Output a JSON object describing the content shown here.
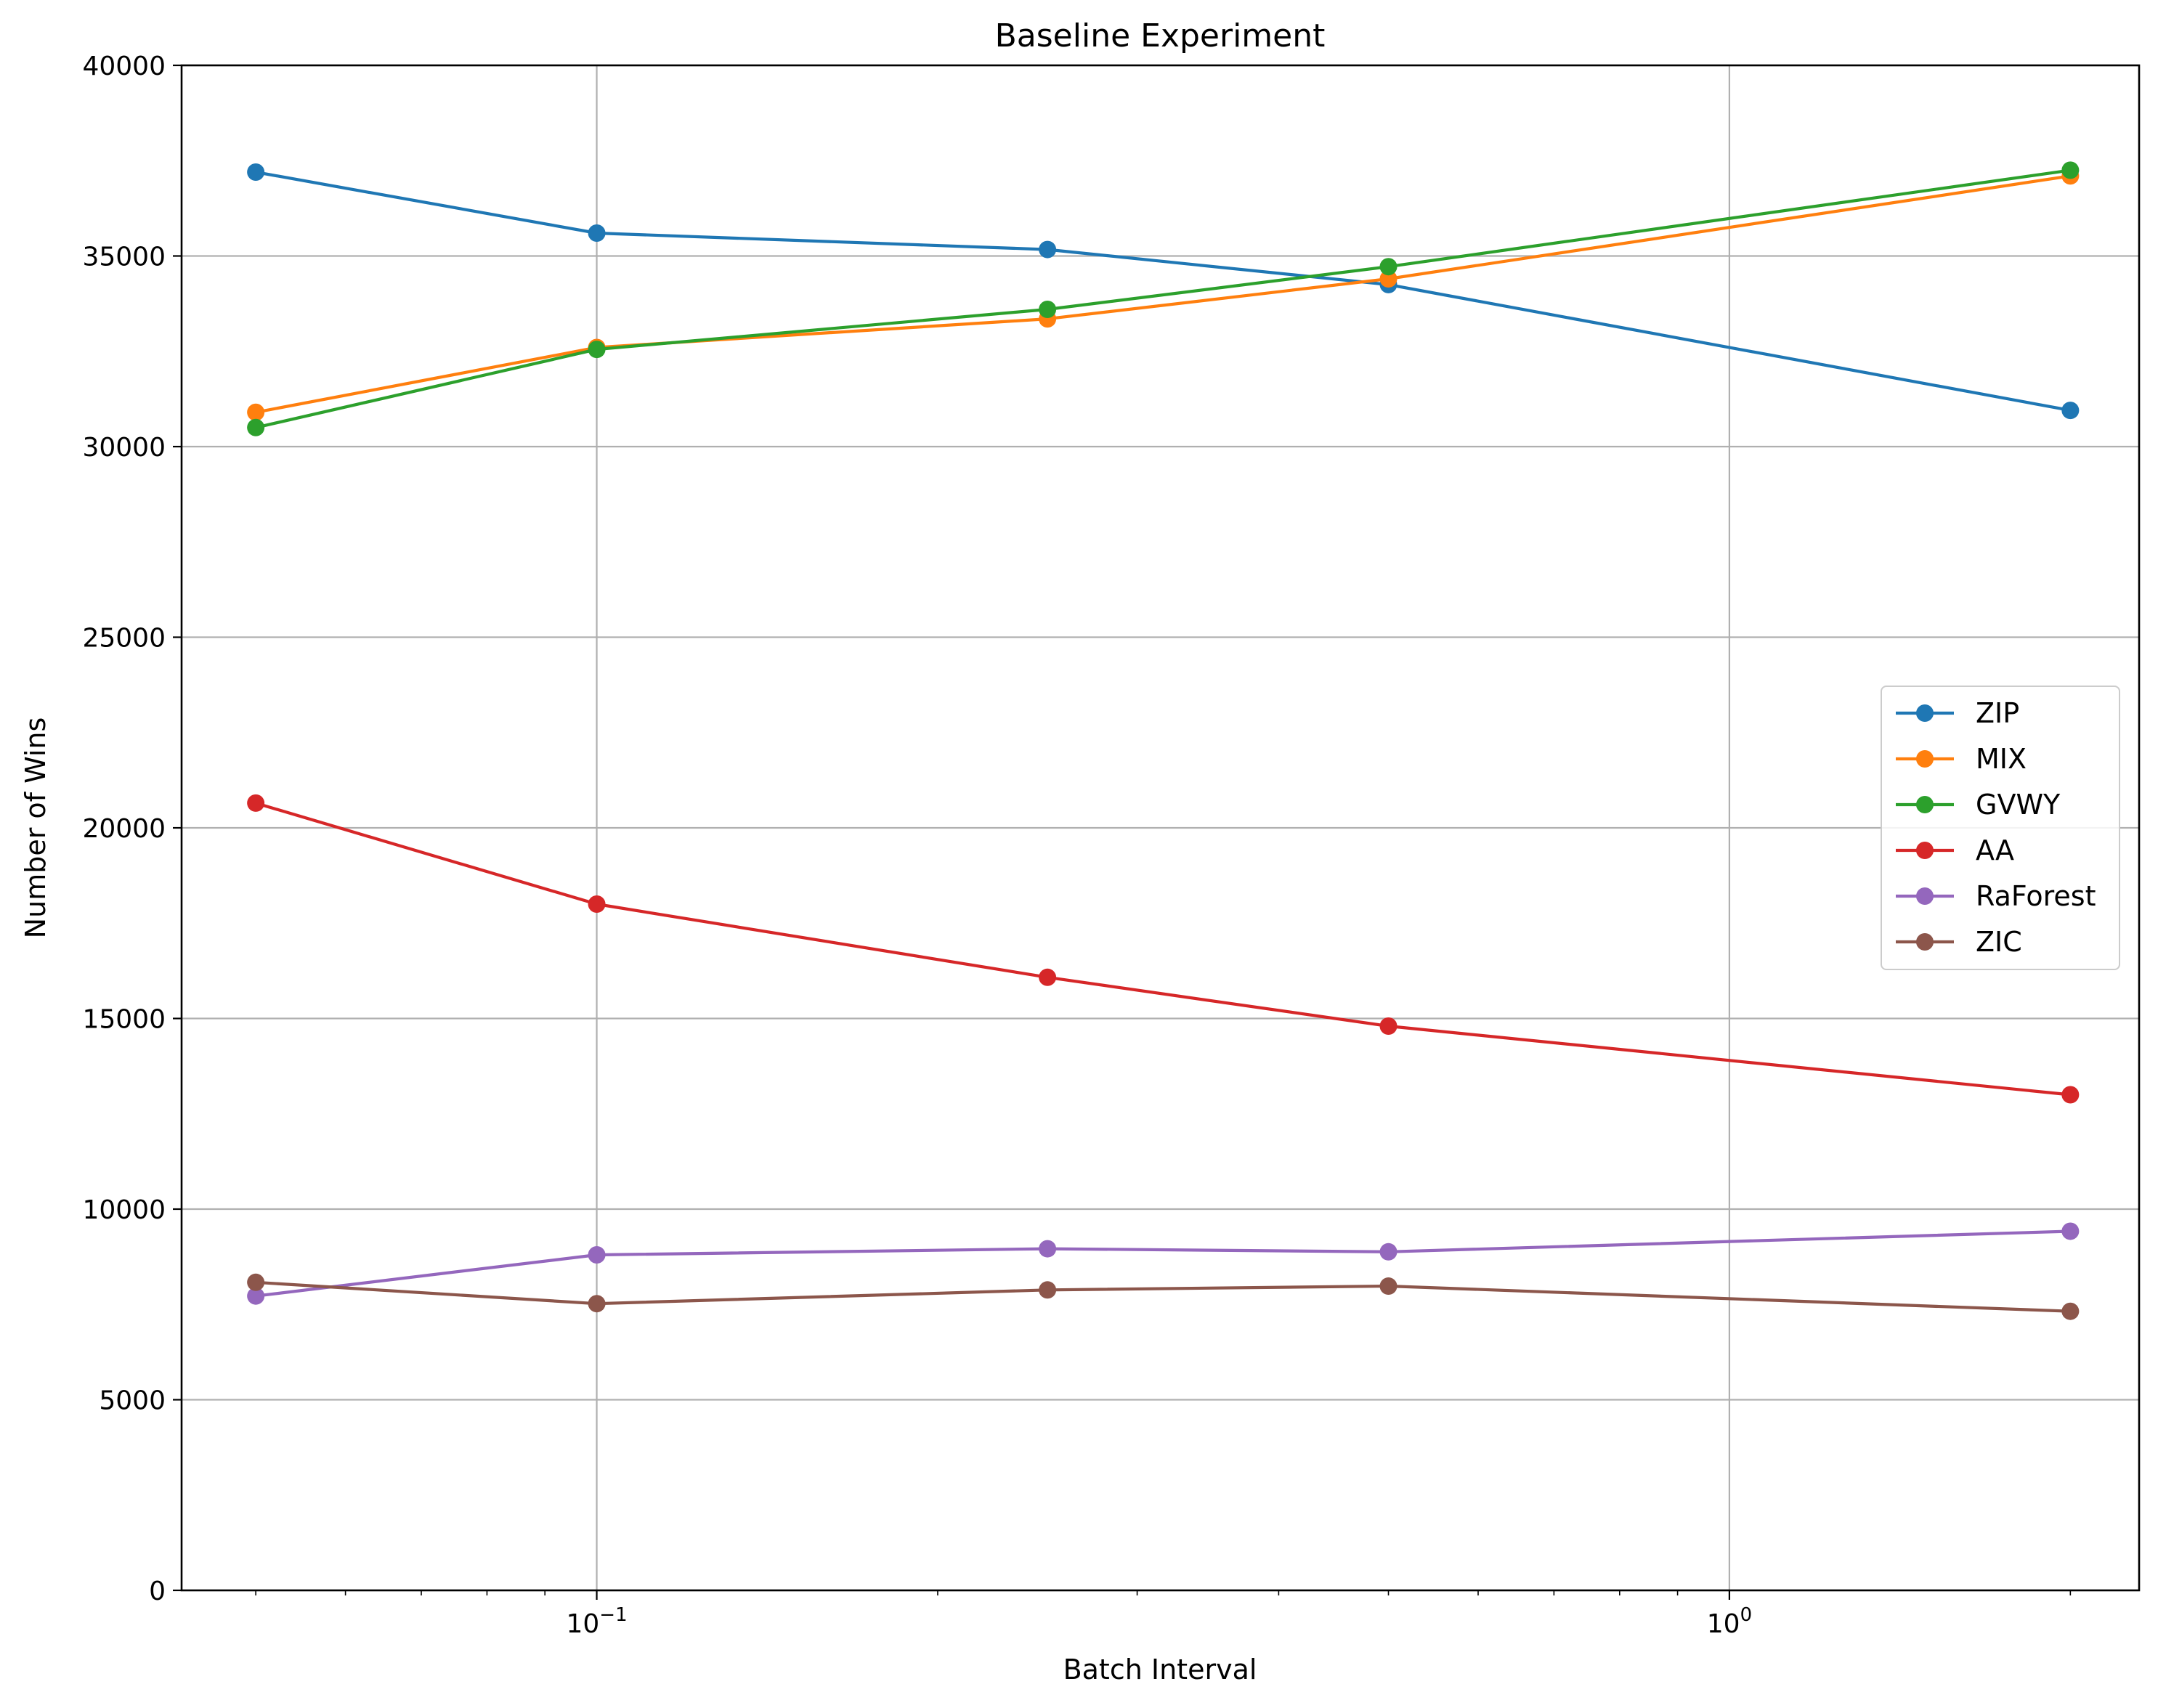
{
  "chart_data": {
    "type": "line",
    "title": "Baseline Experiment",
    "xlabel": "Batch Interval",
    "ylabel": "Number of Wins",
    "xscale": "log",
    "xlim": [
      0.043,
      2.3
    ],
    "ylim": [
      0,
      40000
    ],
    "x": [
      0.05,
      0.1,
      0.25,
      0.5,
      2.0
    ],
    "x_ticks": [
      {
        "value": 0.1,
        "base": "10",
        "exp": "−1"
      },
      {
        "value": 1,
        "base": "10",
        "exp": "0"
      }
    ],
    "y_ticks": [
      0,
      5000,
      10000,
      15000,
      20000,
      25000,
      30000,
      35000,
      40000
    ],
    "y_tick_labels": [
      "0",
      "5000",
      "10000",
      "15000",
      "20000",
      "25000",
      "30000",
      "35000",
      "40000"
    ],
    "grid": true,
    "legend_position": "center-right",
    "series": [
      {
        "name": "ZIP",
        "color": "#1f77b4",
        "values": [
          37200,
          35600,
          35170,
          34250,
          30950
        ]
      },
      {
        "name": "MIX",
        "color": "#ff7f0e",
        "values": [
          30900,
          32600,
          33350,
          34400,
          37100
        ]
      },
      {
        "name": "GVWY",
        "color": "#2ca02c",
        "values": [
          30500,
          32550,
          33600,
          34720,
          37250
        ]
      },
      {
        "name": "AA",
        "color": "#d62728",
        "values": [
          20650,
          18000,
          16080,
          14800,
          13000
        ]
      },
      {
        "name": "RaForest",
        "color": "#9467bd",
        "values": [
          7720,
          8800,
          8960,
          8880,
          9420
        ]
      },
      {
        "name": "ZIC",
        "color": "#8c564b",
        "values": [
          8080,
          7520,
          7880,
          7980,
          7320
        ]
      }
    ]
  }
}
